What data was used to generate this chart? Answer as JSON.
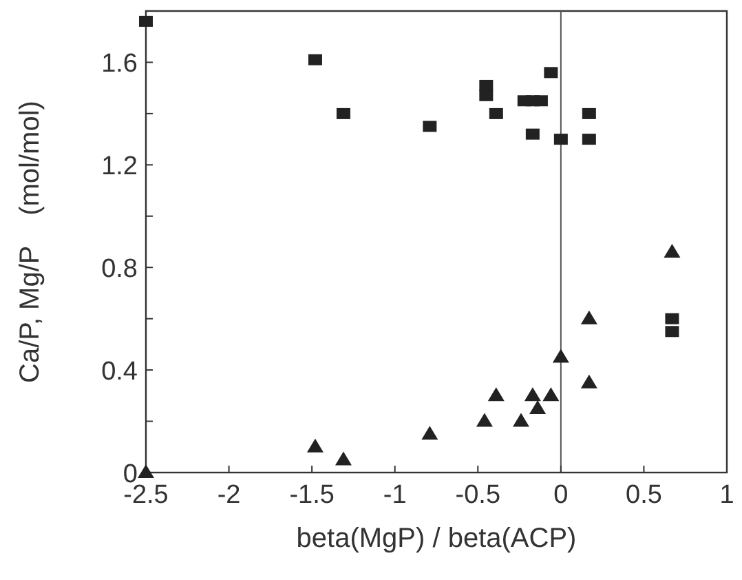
{
  "chart_data": {
    "type": "scatter",
    "xlabel": "beta(MgP) / beta(ACP)",
    "ylabel": "Ca/P, Mg/P    (mol/mol)",
    "xlim": [
      -2.5,
      1
    ],
    "ylim": [
      0,
      1.8
    ],
    "xticks": [
      -2.5,
      -2,
      -1.5,
      -1,
      -0.5,
      0,
      0.5,
      1
    ],
    "yticks": [
      0,
      {
        "value": 0.2,
        "label": null
      },
      0.4,
      {
        "value": 0.6,
        "label": null
      },
      0.8,
      {
        "value": 1.0,
        "label": null
      },
      1.2,
      {
        "value": 1.4,
        "label": null
      },
      1.6
    ],
    "grid": false,
    "ref_lines": [
      {
        "axis": "x",
        "value": 0,
        "color": "#555555"
      }
    ],
    "series": [
      {
        "color": "#222222",
        "marker": "square",
        "x": [
          -2.5,
          -1.48,
          -1.31,
          -0.79,
          -0.45,
          -0.45,
          -0.39,
          -0.22,
          -0.17,
          -0.12,
          -0.06,
          -0.17,
          0,
          0.17,
          0.17,
          0.67,
          0.67
        ],
        "values": [
          1.76,
          1.61,
          1.4,
          1.35,
          1.47,
          1.51,
          1.4,
          1.45,
          1.45,
          1.45,
          1.56,
          1.32,
          1.3,
          1.4,
          1.3,
          0.6,
          0.55
        ]
      },
      {
        "color": "#222222",
        "marker": "triangle",
        "x": [
          0.67,
          0.17,
          0,
          0.17,
          -0.39,
          -0.17,
          -0.06,
          -0.14,
          -0.46,
          -0.24,
          -0.79,
          -1.48,
          -1.31,
          -2.5
        ],
        "values": [
          0.86,
          0.6,
          0.45,
          0.35,
          0.3,
          0.3,
          0.3,
          0.25,
          0.2,
          0.2,
          0.15,
          0.1,
          0.05,
          0
        ]
      }
    ]
  }
}
